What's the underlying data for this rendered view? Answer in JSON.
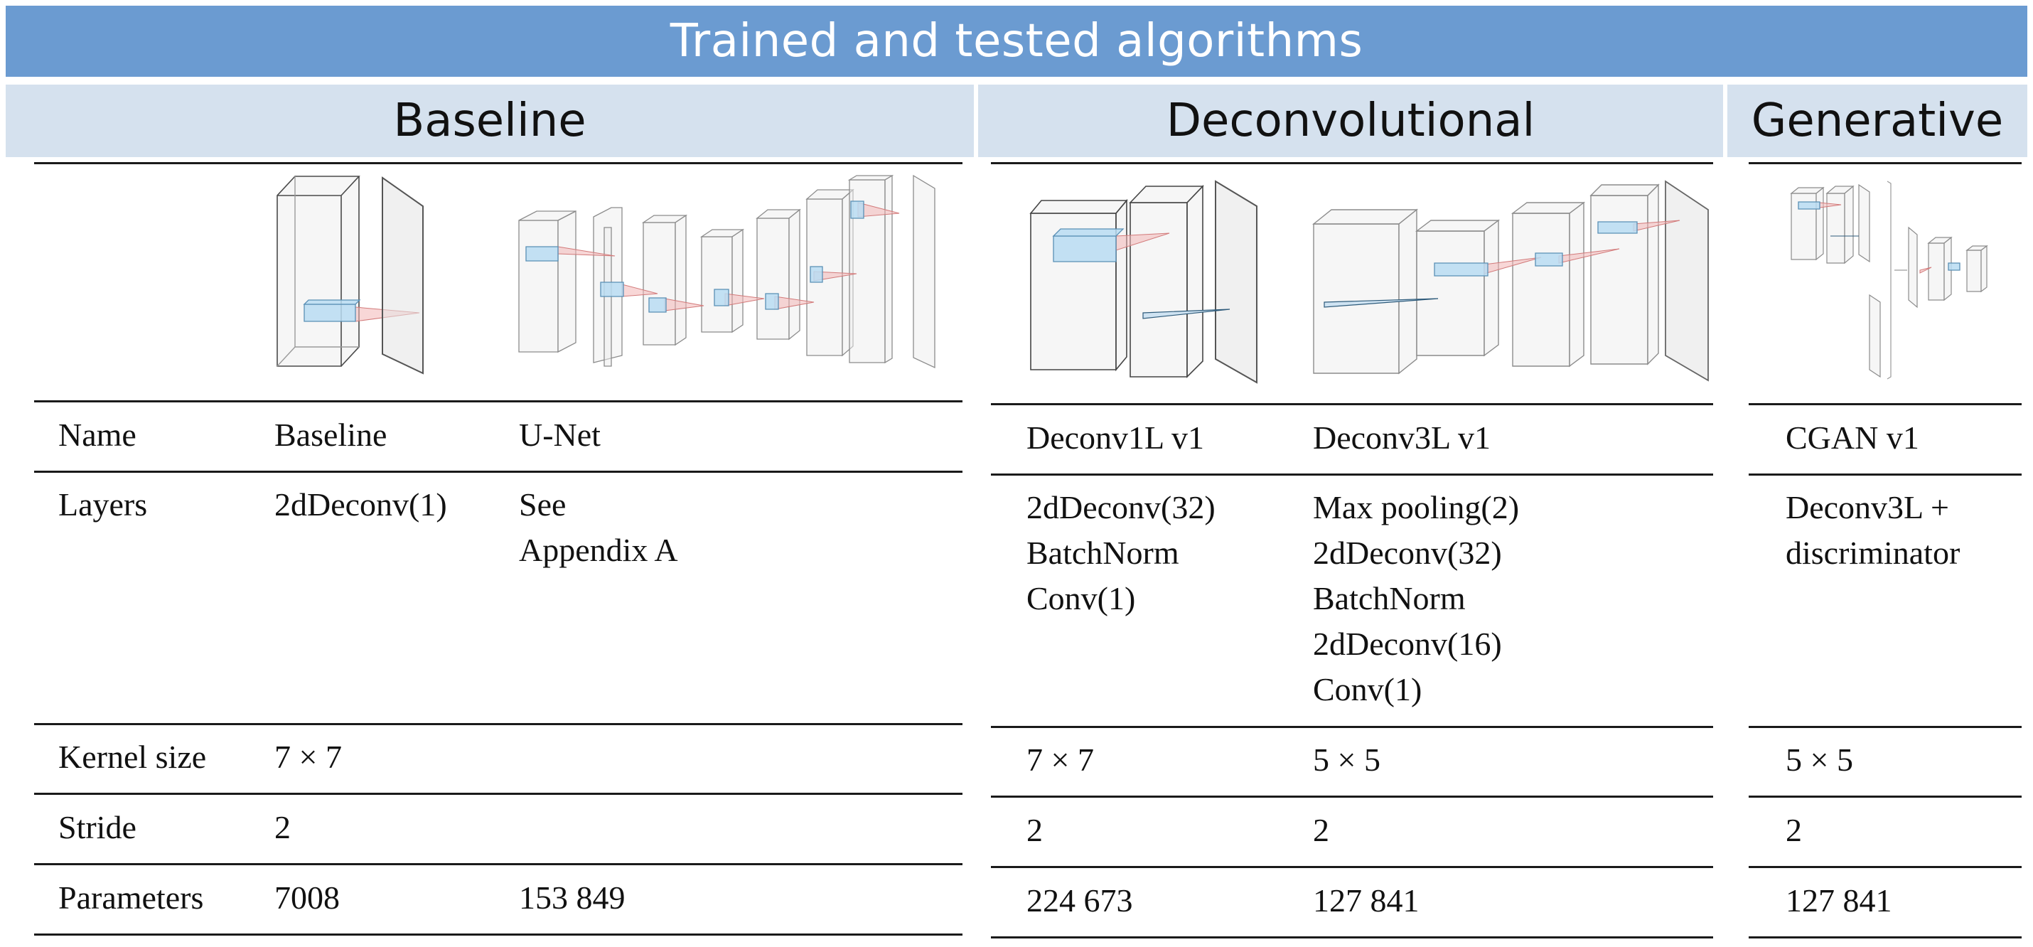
{
  "title": "Trained and tested algorithms",
  "groups": {
    "baseline": "Baseline",
    "deconvolutional": "Deconvolutional",
    "generative": "Generative"
  },
  "row_labels": {
    "name": "Name",
    "layers": "Layers",
    "kernel": "Kernel size",
    "stride": "Stride",
    "params": "Parameters"
  },
  "models": [
    {
      "name": "Baseline",
      "layers": [
        "2dDeconv(1)"
      ],
      "kernel": "7 × 7",
      "stride": "2",
      "params": "7008"
    },
    {
      "name": "U-Net",
      "layers": [
        "See",
        "Appendix A"
      ],
      "kernel": "",
      "stride": "",
      "params": "153 849"
    },
    {
      "name": "Deconv1L v1",
      "layers": [
        "2dDeconv(32)",
        "BatchNorm",
        "Conv(1)"
      ],
      "kernel": "7 × 7",
      "stride": "2",
      "params": "224 673"
    },
    {
      "name": "Deconv3L v1",
      "layers": [
        "Max pooling(2)",
        "2dDeconv(32)",
        "BatchNorm",
        "2dDeconv(16)",
        "Conv(1)"
      ],
      "kernel": "5 × 5",
      "stride": "2",
      "params": "127 841"
    },
    {
      "name": "CGAN v1",
      "layers": [
        "Deconv3L +",
        "discriminator"
      ],
      "kernel": "5 × 5",
      "stride": "2",
      "params": "127 841"
    }
  ]
}
